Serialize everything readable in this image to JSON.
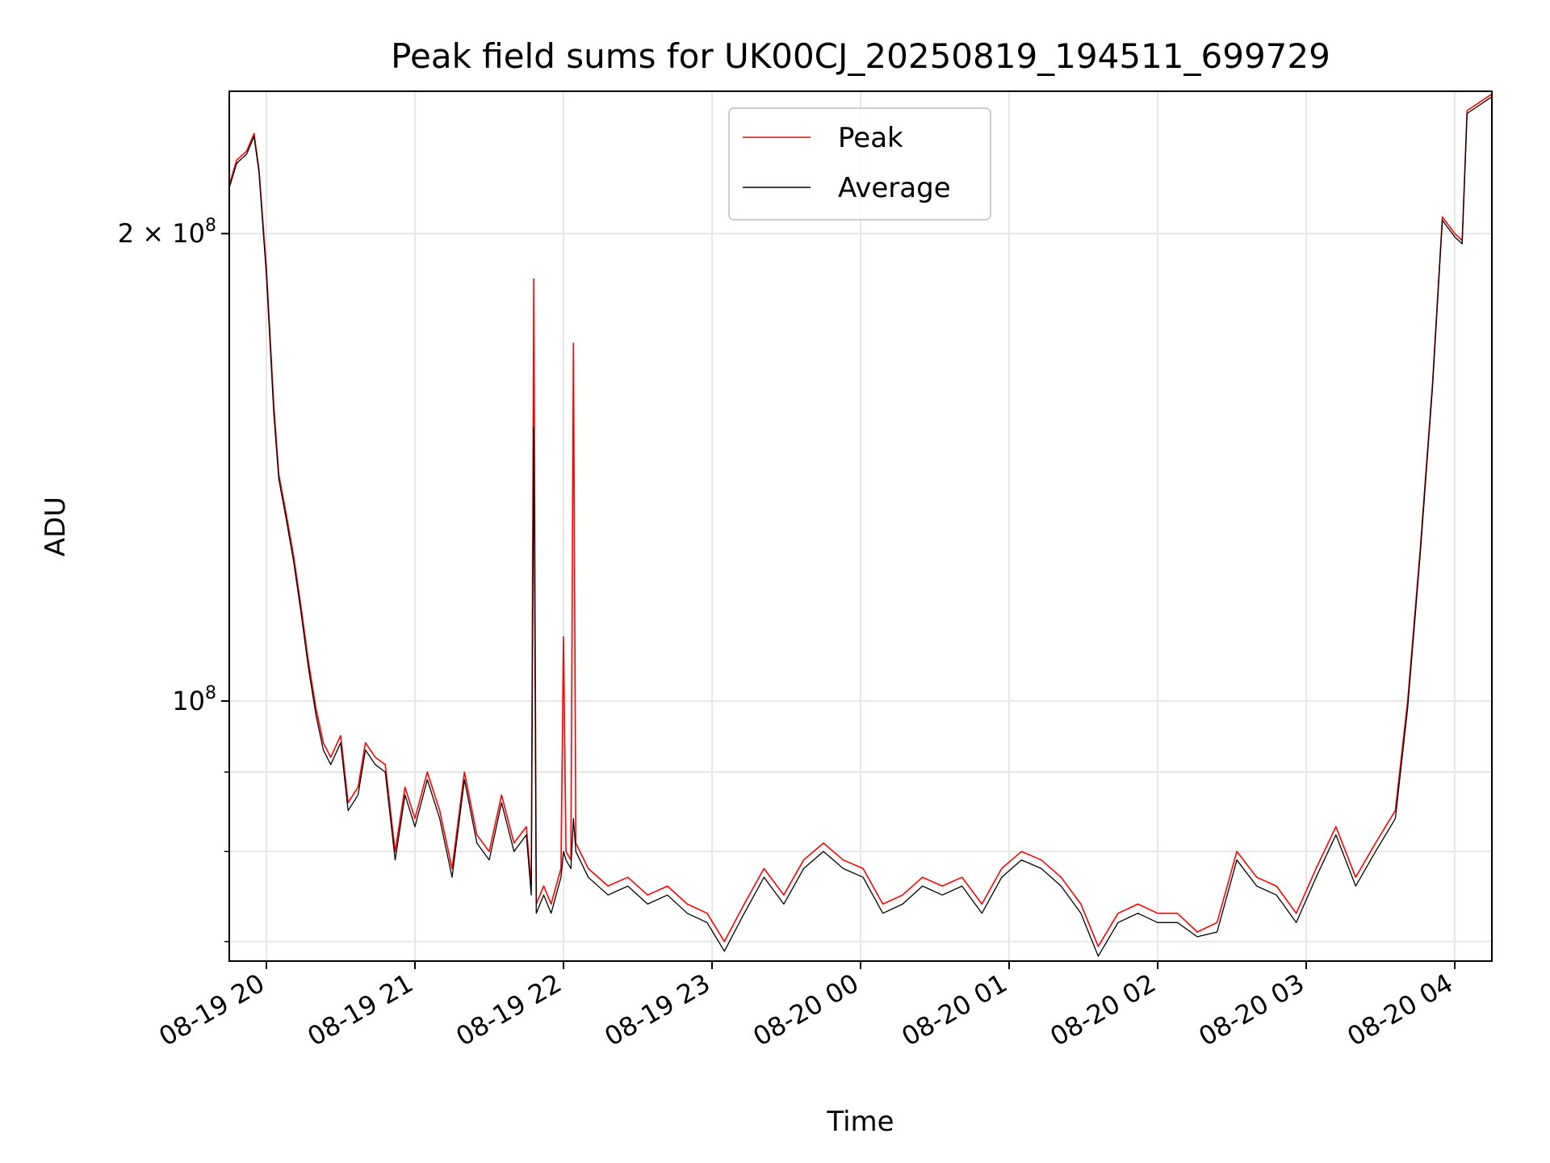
{
  "chart_data": {
    "type": "line",
    "title": "Peak field sums for UK00CJ_20250819_194511_699729",
    "xlabel": "Time",
    "ylabel": "ADU",
    "yscale": "log",
    "grid": true,
    "legend_position": "top-center",
    "x_domain": [
      "2025-08-19 19:45",
      "2025-08-20 04:15"
    ],
    "ylim": [
      68000000,
      247000000
    ],
    "x_ticks": [
      {
        "t": "2025-08-19 20:00",
        "label": "08-19 20"
      },
      {
        "t": "2025-08-19 21:00",
        "label": "08-19 21"
      },
      {
        "t": "2025-08-19 22:00",
        "label": "08-19 22"
      },
      {
        "t": "2025-08-19 23:00",
        "label": "08-19 23"
      },
      {
        "t": "2025-08-20 00:00",
        "label": "08-20 00"
      },
      {
        "t": "2025-08-20 01:00",
        "label": "08-20 01"
      },
      {
        "t": "2025-08-20 02:00",
        "label": "08-20 02"
      },
      {
        "t": "2025-08-20 03:00",
        "label": "08-20 03"
      },
      {
        "t": "2025-08-20 04:00",
        "label": "08-20 04"
      }
    ],
    "y_ticks_major": [
      {
        "v": 100000000,
        "base": "10",
        "exp": "8",
        "mult": ""
      },
      {
        "v": 200000000,
        "base": "10",
        "exp": "8",
        "mult": "2 × "
      }
    ],
    "y_ticks_minor": [
      70000000,
      80000000,
      90000000
    ],
    "colors": {
      "peak": "#ff0000",
      "average": "#000000"
    },
    "series": [
      {
        "name": "Peak",
        "color": "#ff0000",
        "points": [
          [
            "2025-08-19 19:45",
            215000000
          ],
          [
            "2025-08-19 19:48",
            223000000
          ],
          [
            "2025-08-19 19:52",
            226000000
          ],
          [
            "2025-08-19 19:55",
            232000000
          ],
          [
            "2025-08-19 19:57",
            220000000
          ],
          [
            "2025-08-19 20:00",
            190000000
          ],
          [
            "2025-08-19 20:03",
            155000000
          ],
          [
            "2025-08-19 20:05",
            140000000
          ],
          [
            "2025-08-19 20:08",
            132000000
          ],
          [
            "2025-08-19 20:11",
            124000000
          ],
          [
            "2025-08-19 20:14",
            115000000
          ],
          [
            "2025-08-19 20:17",
            106000000
          ],
          [
            "2025-08-19 20:20",
            99000000
          ],
          [
            "2025-08-19 20:23",
            94000000
          ],
          [
            "2025-08-19 20:26",
            92000000
          ],
          [
            "2025-08-19 20:30",
            95000000
          ],
          [
            "2025-08-19 20:33",
            86000000
          ],
          [
            "2025-08-19 20:37",
            88000000
          ],
          [
            "2025-08-19 20:40",
            94000000
          ],
          [
            "2025-08-19 20:44",
            92000000
          ],
          [
            "2025-08-19 20:48",
            91000000
          ],
          [
            "2025-08-19 20:52",
            80000000
          ],
          [
            "2025-08-19 20:56",
            88000000
          ],
          [
            "2025-08-19 21:00",
            84000000
          ],
          [
            "2025-08-19 21:05",
            90000000
          ],
          [
            "2025-08-19 21:10",
            85000000
          ],
          [
            "2025-08-19 21:15",
            78000000
          ],
          [
            "2025-08-19 21:20",
            90000000
          ],
          [
            "2025-08-19 21:25",
            82000000
          ],
          [
            "2025-08-19 21:30",
            80000000
          ],
          [
            "2025-08-19 21:35",
            87000000
          ],
          [
            "2025-08-19 21:40",
            81000000
          ],
          [
            "2025-08-19 21:45",
            83000000
          ],
          [
            "2025-08-19 21:47",
            76000000
          ],
          [
            "2025-08-19 21:48",
            187000000
          ],
          [
            "2025-08-19 21:49",
            74000000
          ],
          [
            "2025-08-19 21:52",
            76000000
          ],
          [
            "2025-08-19 21:55",
            74000000
          ],
          [
            "2025-08-19 21:59",
            78000000
          ],
          [
            "2025-08-19 22:00",
            110000000
          ],
          [
            "2025-08-19 22:01",
            80000000
          ],
          [
            "2025-08-19 22:03",
            79000000
          ],
          [
            "2025-08-19 22:04",
            170000000
          ],
          [
            "2025-08-19 22:05",
            81000000
          ],
          [
            "2025-08-19 22:10",
            78000000
          ],
          [
            "2025-08-19 22:18",
            76000000
          ],
          [
            "2025-08-19 22:26",
            77000000
          ],
          [
            "2025-08-19 22:34",
            75000000
          ],
          [
            "2025-08-19 22:42",
            76000000
          ],
          [
            "2025-08-19 22:50",
            74000000
          ],
          [
            "2025-08-19 22:58",
            73000000
          ],
          [
            "2025-08-19 23:05",
            70000000
          ],
          [
            "2025-08-19 23:13",
            74000000
          ],
          [
            "2025-08-19 23:21",
            78000000
          ],
          [
            "2025-08-19 23:29",
            75000000
          ],
          [
            "2025-08-19 23:37",
            79000000
          ],
          [
            "2025-08-19 23:45",
            81000000
          ],
          [
            "2025-08-19 23:53",
            79000000
          ],
          [
            "2025-08-20 00:01",
            78000000
          ],
          [
            "2025-08-20 00:09",
            74000000
          ],
          [
            "2025-08-20 00:17",
            75000000
          ],
          [
            "2025-08-20 00:25",
            77000000
          ],
          [
            "2025-08-20 00:33",
            76000000
          ],
          [
            "2025-08-20 00:41",
            77000000
          ],
          [
            "2025-08-20 00:49",
            74000000
          ],
          [
            "2025-08-20 00:57",
            78000000
          ],
          [
            "2025-08-20 01:05",
            80000000
          ],
          [
            "2025-08-20 01:13",
            79000000
          ],
          [
            "2025-08-20 01:21",
            77000000
          ],
          [
            "2025-08-20 01:29",
            74000000
          ],
          [
            "2025-08-20 01:36",
            69500000
          ],
          [
            "2025-08-20 01:44",
            73000000
          ],
          [
            "2025-08-20 01:52",
            74000000
          ],
          [
            "2025-08-20 02:00",
            73000000
          ],
          [
            "2025-08-20 02:08",
            73000000
          ],
          [
            "2025-08-20 02:16",
            71000000
          ],
          [
            "2025-08-20 02:24",
            72000000
          ],
          [
            "2025-08-20 02:32",
            80000000
          ],
          [
            "2025-08-20 02:40",
            77000000
          ],
          [
            "2025-08-20 02:48",
            76000000
          ],
          [
            "2025-08-20 02:56",
            73000000
          ],
          [
            "2025-08-20 03:04",
            78000000
          ],
          [
            "2025-08-20 03:12",
            83000000
          ],
          [
            "2025-08-20 03:20",
            77000000
          ],
          [
            "2025-08-20 03:28",
            81000000
          ],
          [
            "2025-08-20 03:36",
            85000000
          ],
          [
            "2025-08-20 03:41",
            100000000
          ],
          [
            "2025-08-20 03:46",
            125000000
          ],
          [
            "2025-08-20 03:51",
            160000000
          ],
          [
            "2025-08-20 03:55",
            205000000
          ],
          [
            "2025-08-20 04:00",
            200000000
          ],
          [
            "2025-08-20 04:03",
            198000000
          ],
          [
            "2025-08-20 04:05",
            240000000
          ],
          [
            "2025-08-20 04:15",
            246000000
          ]
        ]
      },
      {
        "name": "Average",
        "color": "#000000",
        "points": [
          [
            "2025-08-19 19:45",
            214000000
          ],
          [
            "2025-08-19 19:48",
            222000000
          ],
          [
            "2025-08-19 19:52",
            225000000
          ],
          [
            "2025-08-19 19:55",
            231000000
          ],
          [
            "2025-08-19 19:57",
            219000000
          ],
          [
            "2025-08-19 20:00",
            188000000
          ],
          [
            "2025-08-19 20:03",
            153000000
          ],
          [
            "2025-08-19 20:05",
            139000000
          ],
          [
            "2025-08-19 20:08",
            131000000
          ],
          [
            "2025-08-19 20:11",
            123000000
          ],
          [
            "2025-08-19 20:14",
            114000000
          ],
          [
            "2025-08-19 20:17",
            105000000
          ],
          [
            "2025-08-19 20:20",
            98000000
          ],
          [
            "2025-08-19 20:23",
            93000000
          ],
          [
            "2025-08-19 20:26",
            91000000
          ],
          [
            "2025-08-19 20:30",
            94000000
          ],
          [
            "2025-08-19 20:33",
            85000000
          ],
          [
            "2025-08-19 20:37",
            87000000
          ],
          [
            "2025-08-19 20:40",
            93000000
          ],
          [
            "2025-08-19 20:44",
            91000000
          ],
          [
            "2025-08-19 20:48",
            90000000
          ],
          [
            "2025-08-19 20:52",
            79000000
          ],
          [
            "2025-08-19 20:56",
            87000000
          ],
          [
            "2025-08-19 21:00",
            83000000
          ],
          [
            "2025-08-19 21:05",
            89000000
          ],
          [
            "2025-08-19 21:10",
            84000000
          ],
          [
            "2025-08-19 21:15",
            77000000
          ],
          [
            "2025-08-19 21:20",
            89000000
          ],
          [
            "2025-08-19 21:25",
            81000000
          ],
          [
            "2025-08-19 21:30",
            79000000
          ],
          [
            "2025-08-19 21:35",
            86000000
          ],
          [
            "2025-08-19 21:40",
            80000000
          ],
          [
            "2025-08-19 21:45",
            82000000
          ],
          [
            "2025-08-19 21:47",
            75000000
          ],
          [
            "2025-08-19 21:48",
            150000000
          ],
          [
            "2025-08-19 21:49",
            73000000
          ],
          [
            "2025-08-19 21:52",
            75000000
          ],
          [
            "2025-08-19 21:55",
            73000000
          ],
          [
            "2025-08-19 21:59",
            77000000
          ],
          [
            "2025-08-19 22:00",
            80000000
          ],
          [
            "2025-08-19 22:01",
            79000000
          ],
          [
            "2025-08-19 22:03",
            78000000
          ],
          [
            "2025-08-19 22:04",
            84000000
          ],
          [
            "2025-08-19 22:05",
            80000000
          ],
          [
            "2025-08-19 22:10",
            77000000
          ],
          [
            "2025-08-19 22:18",
            75000000
          ],
          [
            "2025-08-19 22:26",
            76000000
          ],
          [
            "2025-08-19 22:34",
            74000000
          ],
          [
            "2025-08-19 22:42",
            75000000
          ],
          [
            "2025-08-19 22:50",
            73000000
          ],
          [
            "2025-08-19 22:58",
            72000000
          ],
          [
            "2025-08-19 23:05",
            69000000
          ],
          [
            "2025-08-19 23:13",
            73000000
          ],
          [
            "2025-08-19 23:21",
            77000000
          ],
          [
            "2025-08-19 23:29",
            74000000
          ],
          [
            "2025-08-19 23:37",
            78000000
          ],
          [
            "2025-08-19 23:45",
            80000000
          ],
          [
            "2025-08-19 23:53",
            78000000
          ],
          [
            "2025-08-20 00:01",
            77000000
          ],
          [
            "2025-08-20 00:09",
            73000000
          ],
          [
            "2025-08-20 00:17",
            74000000
          ],
          [
            "2025-08-20 00:25",
            76000000
          ],
          [
            "2025-08-20 00:33",
            75000000
          ],
          [
            "2025-08-20 00:41",
            76000000
          ],
          [
            "2025-08-20 00:49",
            73000000
          ],
          [
            "2025-08-20 00:57",
            77000000
          ],
          [
            "2025-08-20 01:05",
            79000000
          ],
          [
            "2025-08-20 01:13",
            78000000
          ],
          [
            "2025-08-20 01:21",
            76000000
          ],
          [
            "2025-08-20 01:29",
            73000000
          ],
          [
            "2025-08-20 01:36",
            68500000
          ],
          [
            "2025-08-20 01:44",
            72000000
          ],
          [
            "2025-08-20 01:52",
            73000000
          ],
          [
            "2025-08-20 02:00",
            72000000
          ],
          [
            "2025-08-20 02:08",
            72000000
          ],
          [
            "2025-08-20 02:16",
            70500000
          ],
          [
            "2025-08-20 02:24",
            71000000
          ],
          [
            "2025-08-20 02:32",
            79000000
          ],
          [
            "2025-08-20 02:40",
            76000000
          ],
          [
            "2025-08-20 02:48",
            75000000
          ],
          [
            "2025-08-20 02:56",
            72000000
          ],
          [
            "2025-08-20 03:04",
            77000000
          ],
          [
            "2025-08-20 03:12",
            82000000
          ],
          [
            "2025-08-20 03:20",
            76000000
          ],
          [
            "2025-08-20 03:28",
            80000000
          ],
          [
            "2025-08-20 03:36",
            84000000
          ],
          [
            "2025-08-20 03:41",
            99000000
          ],
          [
            "2025-08-20 03:46",
            124000000
          ],
          [
            "2025-08-20 03:51",
            159000000
          ],
          [
            "2025-08-20 03:55",
            204000000
          ],
          [
            "2025-08-20 04:00",
            199000000
          ],
          [
            "2025-08-20 04:03",
            197000000
          ],
          [
            "2025-08-20 04:05",
            239000000
          ],
          [
            "2025-08-20 04:15",
            245000000
          ]
        ]
      }
    ]
  }
}
